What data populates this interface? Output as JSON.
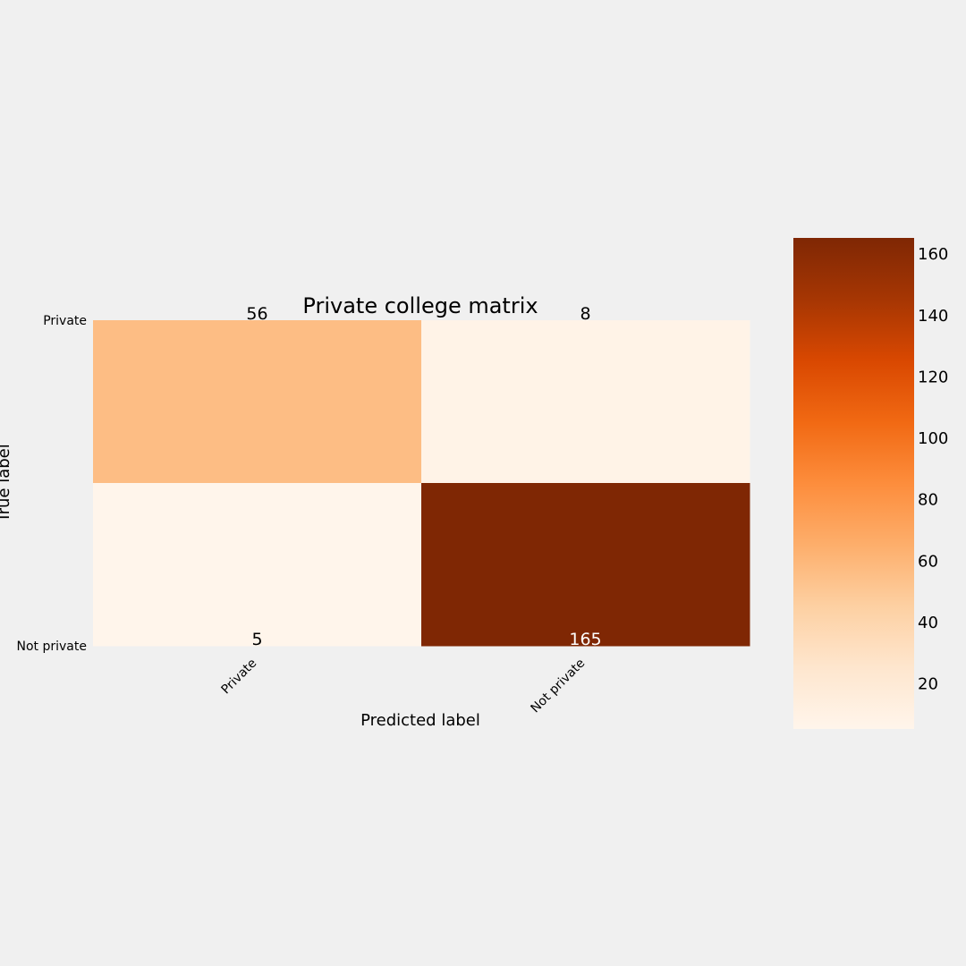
{
  "chart_data": {
    "type": "heatmap",
    "title": "Private college matrix",
    "xlabel": "Predicted label",
    "ylabel": "True label",
    "x_categories": [
      "Private",
      "Not private"
    ],
    "y_categories": [
      "Private",
      "Not private"
    ],
    "values": [
      [
        56,
        8
      ],
      [
        5,
        165
      ]
    ],
    "colormap": "Oranges",
    "colorbar": {
      "min": 5,
      "max": 165,
      "ticks": [
        20,
        40,
        60,
        80,
        100,
        120,
        140,
        160
      ]
    },
    "grid": false,
    "colors": {
      "background": "#f0f0f0",
      "cmap_stops": [
        "#fff5eb",
        "#fee6ce",
        "#fdd0a2",
        "#fdae6b",
        "#fd8d3c",
        "#f16913",
        "#d94801",
        "#a63603",
        "#7f2704"
      ]
    }
  }
}
